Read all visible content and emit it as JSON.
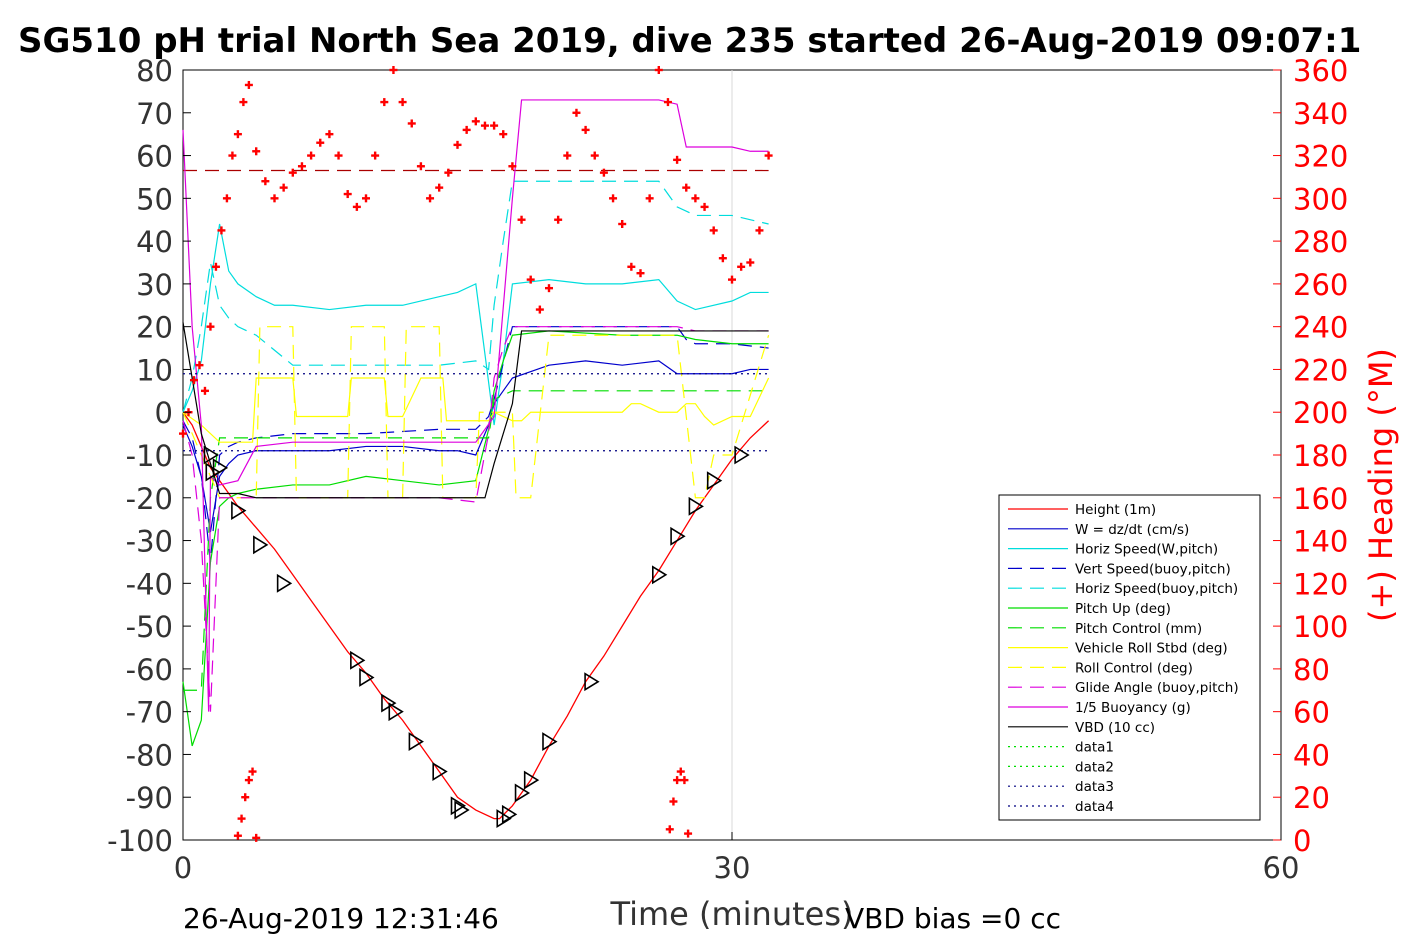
{
  "chart_data": {
    "type": "line",
    "title": "SG510 pH trial North Sea 2019, dive 235 started 26-Aug-2019 09:07:1",
    "xlabel": "Time (minutes)",
    "ylabel_right": "(+) Heading (°M)",
    "xlim": [
      0,
      60
    ],
    "ylim": [
      -100,
      80
    ],
    "ylim_right": [
      0,
      360
    ],
    "x_ticks": [
      "0",
      "30",
      "60"
    ],
    "y_ticks": [
      "80",
      "70",
      "60",
      "50",
      "40",
      "30",
      "20",
      "10",
      "0",
      "-10",
      "-20",
      "-30",
      "-40",
      "-50",
      "-60",
      "-70",
      "-80",
      "-90",
      "-100"
    ],
    "y_ticks_right": [
      "360",
      "340",
      "320",
      "300",
      "280",
      "260",
      "240",
      "220",
      "200",
      "180",
      "160",
      "140",
      "120",
      "100",
      "80",
      "60",
      "40",
      "20",
      "0"
    ],
    "grid": "x-only at 30",
    "legend_position": "lower-right",
    "footer_left": "26-Aug-2019 12:31:46",
    "footer_right": "VBD bias =0 cc",
    "legend": [
      {
        "label": "Height (1m)",
        "color": "#ff0000",
        "dash": "solid"
      },
      {
        "label": "W = dz/dt (cm/s)",
        "color": "#0000cc",
        "dash": "solid"
      },
      {
        "label": "Horiz Speed(W,pitch)",
        "color": "#00dddd",
        "dash": "solid"
      },
      {
        "label": "Vert Speed(buoy,pitch)",
        "color": "#0000cc",
        "dash": "dashed"
      },
      {
        "label": "Horiz Speed(buoy,pitch)",
        "color": "#00dddd",
        "dash": "dashed"
      },
      {
        "label": "Pitch Up (deg)",
        "color": "#00dd00",
        "dash": "solid"
      },
      {
        "label": "Pitch Control (mm)",
        "color": "#00dd00",
        "dash": "dashed"
      },
      {
        "label": "Vehicle Roll Stbd (deg)",
        "color": "#ffff00",
        "dash": "solid"
      },
      {
        "label": "Roll Control (deg)",
        "color": "#ffff00",
        "dash": "dashed"
      },
      {
        "label": "Glide Angle (buoy,pitch)",
        "color": "#dd00dd",
        "dash": "dashed"
      },
      {
        "label": "1/5 Buoyancy (g)",
        "color": "#dd00dd",
        "dash": "solid"
      },
      {
        "label": "VBD (10 cc)",
        "color": "#000000",
        "dash": "solid"
      },
      {
        "label": "data1",
        "color": "#00dd00",
        "dash": "dotted"
      },
      {
        "label": "data2",
        "color": "#00dd00",
        "dash": "dotted"
      },
      {
        "label": "data3",
        "color": "#000080",
        "dash": "dotted"
      },
      {
        "label": "data4",
        "color": "#000080",
        "dash": "dotted"
      }
    ],
    "series": [
      {
        "name": "Height (1m)",
        "color": "#ff0000",
        "dash": "solid",
        "x": [
          0,
          0.5,
          1,
          1.5,
          2,
          2.5,
          3,
          4,
          5,
          6,
          7,
          8,
          9,
          10,
          11,
          12,
          13,
          14,
          15,
          16,
          17,
          17.3,
          18,
          19,
          20,
          21,
          22,
          23,
          24,
          25,
          26,
          27,
          28,
          29,
          30,
          31,
          32
        ],
        "y": [
          0,
          -3,
          -8,
          -13,
          -16,
          -19,
          -22,
          -27,
          -32,
          -38,
          -44,
          -50,
          -56,
          -61,
          -67,
          -72,
          -78,
          -84,
          -90,
          -93,
          -95,
          -95,
          -92,
          -86,
          -78,
          -71,
          -63,
          -57,
          -50,
          -43,
          -37,
          -30,
          -23,
          -17,
          -11,
          -6,
          -2
        ]
      },
      {
        "name": "W = dz/dt (cm/s)",
        "color": "#0000cc",
        "dash": "solid",
        "x": [
          0,
          0.5,
          1,
          1.5,
          2,
          2.5,
          3,
          4,
          6,
          8,
          10,
          12,
          14,
          15,
          16,
          16.7,
          17,
          17.5,
          18,
          20,
          22,
          24,
          26,
          27,
          28,
          30,
          31,
          32
        ],
        "y": [
          -3,
          -8,
          -15,
          -28,
          -15,
          -12,
          -10,
          -9,
          -9,
          -9,
          -8,
          -8,
          -9,
          -9,
          -10,
          -3,
          2,
          5,
          8,
          11,
          12,
          11,
          12,
          9,
          9,
          9,
          10,
          10
        ]
      },
      {
        "name": "Horiz Speed(W,pitch)",
        "color": "#00dddd",
        "dash": "solid",
        "x": [
          0,
          0.5,
          1,
          1.5,
          2,
          2.5,
          3,
          4,
          5,
          6,
          8,
          10,
          12,
          14,
          15,
          16,
          16.7,
          17,
          17.5,
          18,
          20,
          22,
          24,
          26,
          27,
          28,
          30,
          31,
          32
        ],
        "y": [
          0,
          5,
          12,
          30,
          44,
          33,
          30,
          27,
          25,
          25,
          24,
          25,
          25,
          27,
          28,
          30,
          7,
          -3,
          12,
          30,
          31,
          30,
          30,
          31,
          26,
          24,
          26,
          28,
          28
        ]
      },
      {
        "name": "Vert Speed(buoy,pitch)",
        "color": "#0000cc",
        "dash": "dashed",
        "x": [
          0,
          0.5,
          1,
          1.5,
          2,
          2.5,
          3,
          4,
          6,
          10,
          14,
          16,
          16.7,
          17,
          18,
          20,
          24,
          27,
          27.5,
          28,
          30,
          32
        ],
        "y": [
          -2,
          -6,
          -15,
          -35,
          -10,
          -8,
          -7,
          -6,
          -5,
          -5,
          -4,
          -4,
          -1,
          3,
          20,
          20,
          20,
          20,
          17,
          16,
          16,
          15
        ]
      },
      {
        "name": "Horiz Speed(buoy,pitch)",
        "color": "#00dddd",
        "dash": "dashed",
        "x": [
          0,
          0.5,
          1,
          1.5,
          2,
          2.5,
          3,
          4,
          6,
          10,
          14,
          16,
          16.7,
          17,
          17.5,
          18,
          20,
          24,
          26,
          27,
          28,
          30,
          32
        ],
        "y": [
          0,
          8,
          20,
          35,
          25,
          22,
          20,
          18,
          11,
          11,
          11,
          12,
          10,
          25,
          40,
          54,
          54,
          54,
          54,
          48,
          46,
          46,
          44
        ]
      },
      {
        "name": "Pitch Up (deg)",
        "color": "#00dd00",
        "dash": "solid",
        "x": [
          0,
          0.5,
          1,
          1.5,
          2,
          2.5,
          3,
          4,
          6,
          8,
          10,
          12,
          14,
          16,
          16.7,
          17,
          17.5,
          18,
          20,
          24,
          27,
          28,
          30,
          32
        ],
        "y": [
          -63,
          -78,
          -72,
          -35,
          -22,
          -20,
          -19,
          -18,
          -17,
          -17,
          -15,
          -16,
          -17,
          -16,
          -4,
          5,
          12,
          18,
          19,
          18,
          18,
          17,
          16,
          16
        ]
      },
      {
        "name": "Pitch Control (mm)",
        "color": "#00dd00",
        "dash": "dashed",
        "x": [
          0,
          1,
          1.5,
          2,
          3,
          16.7,
          17,
          18,
          32
        ],
        "y": [
          -65,
          -65,
          -20,
          -6,
          -6,
          -6,
          3,
          5,
          5
        ]
      },
      {
        "name": "Vehicle Roll Stbd (deg)",
        "color": "#ffff00",
        "dash": "solid",
        "x": [
          0,
          1,
          2,
          3,
          3.8,
          4,
          5,
          6,
          6.2,
          8,
          9,
          9.2,
          10,
          11,
          11.2,
          12,
          13,
          14.2,
          14.4,
          16,
          16.7,
          17,
          18,
          18.5,
          19,
          20,
          24,
          24.5,
          25,
          26,
          27,
          27.5,
          28,
          28.5,
          29,
          30,
          31,
          32
        ],
        "y": [
          0,
          -3,
          -7,
          -7,
          -7,
          8,
          8,
          8,
          -1,
          -1,
          -1,
          8,
          8,
          8,
          -1,
          -1,
          8,
          8,
          -2,
          -2,
          -2,
          0,
          -2,
          -2,
          0,
          0,
          0,
          2,
          2,
          0,
          0,
          2,
          2,
          -1,
          -3,
          -1,
          -1,
          8
        ]
      },
      {
        "name": "Roll Control (deg)",
        "color": "#ffff00",
        "dash": "dashed",
        "x": [
          0,
          2,
          4,
          4.2,
          6,
          6.2,
          9,
          9.2,
          11,
          11.2,
          12,
          12.2,
          14,
          14.2,
          16,
          16.2,
          18,
          18.2,
          19,
          20,
          24,
          25,
          27,
          28,
          28.5,
          29,
          30,
          32
        ],
        "y": [
          0,
          -20,
          -20,
          20,
          20,
          -20,
          -20,
          20,
          20,
          -20,
          -20,
          20,
          20,
          -20,
          -20,
          0,
          0,
          -20,
          -20,
          18,
          18,
          18,
          18,
          -20,
          -20,
          -10,
          -10,
          18
        ]
      },
      {
        "name": "Glide Angle (buoy,pitch)",
        "color": "#dd00dd",
        "dash": "dashed",
        "x": [
          0,
          0.5,
          1,
          1.5,
          2,
          3,
          4,
          6,
          8,
          10,
          12,
          14,
          16,
          16.7,
          17,
          17.5,
          18,
          20,
          24,
          27,
          28,
          30,
          32
        ],
        "y": [
          -2,
          -10,
          -30,
          -70,
          -20,
          -20,
          -20,
          -20,
          -20,
          -20,
          -20,
          -20,
          -21,
          -5,
          8,
          15,
          20,
          20,
          20,
          20,
          19,
          19,
          19
        ]
      },
      {
        "name": "1/5 Buoyancy (g)",
        "color": "#dd00dd",
        "dash": "solid",
        "x": [
          0,
          0.5,
          1,
          1.4,
          1.5,
          2,
          3,
          4,
          6,
          8,
          10,
          12,
          14,
          16,
          17,
          18,
          18.5,
          20,
          24,
          26,
          27,
          27.5,
          28,
          30,
          31,
          32
        ],
        "y": [
          66,
          20,
          -3,
          -70,
          -15,
          -17,
          -16,
          -8,
          -7,
          -7,
          -7,
          -7,
          -7,
          -7,
          -1,
          50,
          73,
          73,
          73,
          73,
          72,
          62,
          62,
          62,
          61,
          61
        ]
      },
      {
        "name": "VBD (10 cc)",
        "color": "#000000",
        "dash": "solid",
        "x": [
          0,
          1,
          2,
          3,
          4,
          8,
          12,
          16,
          16.5,
          17,
          18,
          18.5,
          20,
          24,
          28,
          32
        ],
        "y": [
          21,
          -5,
          -19,
          -19,
          -20,
          -20,
          -20,
          -20,
          -20,
          -12,
          2,
          19,
          19,
          19,
          19,
          19
        ]
      },
      {
        "name": "data3",
        "color": "#000080",
        "dash": "dotted",
        "x": [
          0,
          32
        ],
        "y": [
          9,
          9
        ]
      },
      {
        "name": "data4",
        "color": "#000080",
        "dash": "dotted",
        "x": [
          0,
          32
        ],
        "y": [
          -9,
          -9
        ]
      }
    ],
    "reference_lines": [
      {
        "axis": "right",
        "value": 313,
        "color": "#aa0000",
        "dash": "dashed",
        "x": [
          0,
          32
        ]
      }
    ],
    "heading_markers": {
      "color": "#ff0000",
      "symbol": "+",
      "axis": "right",
      "x": [
        0,
        0.3,
        0.6,
        0.9,
        1.2,
        1.5,
        1.8,
        2.1,
        2.4,
        2.7,
        3.0,
        3.3,
        3.6,
        4.0,
        4.5,
        5.0,
        5.5,
        6.0,
        6.5,
        7.0,
        7.5,
        8.0,
        8.5,
        9.0,
        9.5,
        10.0,
        10.5,
        11.0,
        11.5,
        12.0,
        12.5,
        13.0,
        13.5,
        14.0,
        14.5,
        15.0,
        15.5,
        16.0,
        16.5,
        17.0,
        17.5,
        18.0,
        18.5,
        19.0,
        19.5,
        20.0,
        20.5,
        21.0,
        21.5,
        22.0,
        22.5,
        23.0,
        23.5,
        24.0,
        24.5,
        25.0,
        25.5,
        26.0,
        26.5,
        27.0,
        27.5,
        28.0,
        28.5,
        29.0,
        29.5,
        30.0,
        30.5,
        31.0,
        31.5,
        32.0
      ],
      "y": [
        190,
        200,
        215,
        222,
        210,
        240,
        268,
        285,
        300,
        320,
        330,
        345,
        353,
        322,
        308,
        300,
        305,
        312,
        315,
        320,
        326,
        330,
        320,
        302,
        296,
        300,
        320,
        345,
        360,
        345,
        335,
        315,
        300,
        305,
        312,
        325,
        332,
        336,
        334,
        334,
        330,
        315,
        290,
        262,
        248,
        258,
        290,
        320,
        340,
        332,
        320,
        312,
        300,
        288,
        268,
        265,
        300,
        360,
        345,
        318,
        305,
        300,
        296,
        285,
        272,
        262,
        268,
        270,
        285,
        320
      ]
    },
    "heading_markers_low": {
      "color": "#ff0000",
      "symbol": "+",
      "axis": "right",
      "x": [
        3.0,
        3.2,
        3.4,
        3.6,
        3.8,
        4.0,
        26.6,
        26.8,
        27.0,
        27.2,
        27.4,
        27.6
      ],
      "y": [
        2,
        10,
        20,
        28,
        32,
        1,
        5,
        18,
        28,
        32,
        28,
        3
      ]
    },
    "time_markers": {
      "symbol": "triangle-right",
      "color": "#000000",
      "x": [
        1.5,
        1.6,
        2.0,
        3.0,
        4.2,
        5.5,
        9.5,
        10.0,
        11.2,
        11.6,
        12.7,
        14.0,
        15.0,
        15.2,
        17.5,
        17.8,
        18.5,
        19.0,
        20.0,
        22.3,
        26.0,
        27.0,
        28.0,
        29.0,
        30.5
      ],
      "y": [
        -10,
        -14,
        -13,
        -23,
        -31,
        -40,
        -58,
        -62,
        -68,
        -70,
        -77,
        -84,
        -92,
        -93,
        -95,
        -94,
        -89,
        -86,
        -77,
        -63,
        -38,
        -29,
        -22,
        -16,
        -10
      ]
    }
  }
}
